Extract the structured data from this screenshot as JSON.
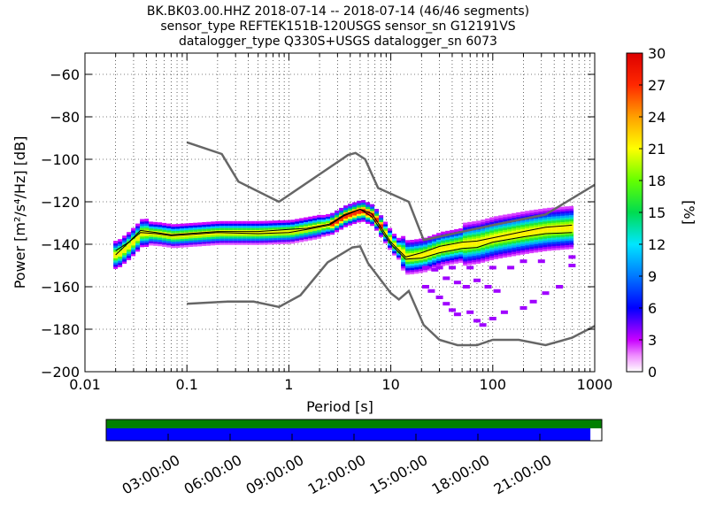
{
  "title": {
    "line1": "BK.BK03.00.HHZ   2018-07-14 -- 2018-07-14  (46/46 segments)",
    "line2": "sensor_type REFTEK151B-120USGS sensor_sn G12191VS",
    "line3": "datalogger_type Q330S+USGS datalogger_sn 6073"
  },
  "chart_data": {
    "type": "heatmap",
    "x_scale": "log",
    "xlabel": "Period [s]",
    "ylabel": "Power [m²/s⁴/Hz] [dB]",
    "xlim": [
      0.01,
      1000
    ],
    "ylim": [
      -200,
      -50
    ],
    "x_ticks": [
      {
        "value": 0.01,
        "label": "0.01"
      },
      {
        "value": 0.1,
        "label": "0.1"
      },
      {
        "value": 1,
        "label": "1"
      },
      {
        "value": 10,
        "label": "10"
      },
      {
        "value": 100,
        "label": "100"
      },
      {
        "value": 1000,
        "label": "1000"
      }
    ],
    "y_ticks": [
      -60,
      -80,
      -100,
      -120,
      -140,
      -160,
      -180,
      -200
    ],
    "grid": true,
    "colorbar": {
      "label": "[%]",
      "min": 0,
      "max": 30,
      "ticks": [
        0,
        3,
        6,
        9,
        12,
        15,
        18,
        21,
        24,
        27,
        30
      ]
    },
    "noise_model_high": [
      [
        0.1,
        -92
      ],
      [
        0.22,
        -97.5
      ],
      [
        0.32,
        -110.5
      ],
      [
        0.8,
        -120
      ],
      [
        3.8,
        -98
      ],
      [
        4.5,
        -97
      ],
      [
        5.6,
        -100
      ],
      [
        7.5,
        -113.5
      ],
      [
        15,
        -120
      ],
      [
        21,
        -138
      ],
      [
        100,
        -131
      ],
      [
        330,
        -126
      ],
      [
        1000,
        -112
      ]
    ],
    "noise_model_low": [
      [
        0.1,
        -168
      ],
      [
        0.25,
        -167
      ],
      [
        0.45,
        -167
      ],
      [
        0.8,
        -169.5
      ],
      [
        1.3,
        -164
      ],
      [
        2.4,
        -148.5
      ],
      [
        4.2,
        -141.5
      ],
      [
        5,
        -141
      ],
      [
        6,
        -149
      ],
      [
        10,
        -163
      ],
      [
        12,
        -166
      ],
      [
        15,
        -162
      ],
      [
        21,
        -178
      ],
      [
        30,
        -185
      ],
      [
        45,
        -187.5
      ],
      [
        70,
        -187.5
      ],
      [
        100,
        -185
      ],
      [
        180,
        -185
      ],
      [
        330,
        -187.5
      ],
      [
        600,
        -184
      ],
      [
        1000,
        -178.5
      ]
    ],
    "median": [
      [
        0.02,
        -145
      ],
      [
        0.027,
        -139
      ],
      [
        0.035,
        -134.5
      ],
      [
        0.05,
        -135
      ],
      [
        0.07,
        -136
      ],
      [
        0.1,
        -135.5
      ],
      [
        0.2,
        -134.5
      ],
      [
        0.5,
        -135
      ],
      [
        1,
        -134.5
      ],
      [
        1.5,
        -133
      ],
      [
        2.5,
        -131
      ],
      [
        3.5,
        -126.5
      ],
      [
        5,
        -123.5
      ],
      [
        6.5,
        -127
      ],
      [
        10,
        -140
      ],
      [
        14,
        -147
      ],
      [
        20,
        -146.5
      ],
      [
        30,
        -144
      ],
      [
        50,
        -142
      ],
      [
        70,
        -141.5
      ],
      [
        100,
        -139
      ],
      [
        200,
        -136.5
      ],
      [
        330,
        -135
      ],
      [
        600,
        -134.5
      ]
    ],
    "mode": [
      [
        0.02,
        -143
      ],
      [
        0.027,
        -139
      ],
      [
        0.035,
        -133.5
      ],
      [
        0.05,
        -134.5
      ],
      [
        0.07,
        -135.5
      ],
      [
        0.1,
        -135
      ],
      [
        0.2,
        -134
      ],
      [
        0.5,
        -134
      ],
      [
        1,
        -133
      ],
      [
        1.5,
        -132.5
      ],
      [
        2.5,
        -130.5
      ],
      [
        3.5,
        -126
      ],
      [
        5,
        -123.5
      ],
      [
        6.5,
        -125.5
      ],
      [
        10,
        -139
      ],
      [
        14,
        -146
      ],
      [
        20,
        -144
      ],
      [
        30,
        -141
      ],
      [
        50,
        -139
      ],
      [
        70,
        -138.5
      ],
      [
        100,
        -137
      ],
      [
        200,
        -134
      ],
      [
        330,
        -132
      ],
      [
        600,
        -131
      ]
    ],
    "band_center": [
      [
        0.02,
        -145
      ],
      [
        0.027,
        -140
      ],
      [
        0.035,
        -134.5
      ],
      [
        0.05,
        -135
      ],
      [
        0.07,
        -136
      ],
      [
        0.1,
        -135.5
      ],
      [
        0.2,
        -134.5
      ],
      [
        0.5,
        -134.5
      ],
      [
        1,
        -134
      ],
      [
        1.5,
        -132.5
      ],
      [
        2.5,
        -130.5
      ],
      [
        3.5,
        -126.5
      ],
      [
        5,
        -124
      ],
      [
        6.5,
        -126.5
      ],
      [
        10,
        -139.5
      ],
      [
        14,
        -146
      ],
      [
        20,
        -145
      ],
      [
        30,
        -142
      ],
      [
        50,
        -140
      ],
      [
        70,
        -139
      ],
      [
        100,
        -137
      ],
      [
        200,
        -134.5
      ],
      [
        330,
        -133
      ],
      [
        600,
        -132
      ]
    ],
    "outlier_cells": [
      [
        22,
        -160
      ],
      [
        25,
        -162
      ],
      [
        30,
        -165
      ],
      [
        35,
        -168
      ],
      [
        40,
        -171
      ],
      [
        45,
        -173
      ],
      [
        60,
        -172
      ],
      [
        70,
        -176
      ],
      [
        80,
        -178
      ],
      [
        100,
        -175
      ],
      [
        130,
        -172
      ],
      [
        200,
        -170
      ],
      [
        250,
        -167
      ],
      [
        330,
        -163
      ],
      [
        450,
        -160
      ],
      [
        22,
        -151
      ],
      [
        30,
        -151
      ],
      [
        40,
        -151
      ],
      [
        60,
        -151
      ],
      [
        100,
        -151
      ],
      [
        150,
        -151
      ],
      [
        200,
        -148
      ],
      [
        300,
        -148
      ],
      [
        600,
        -146
      ],
      [
        600,
        -150
      ],
      [
        27,
        -152
      ],
      [
        35,
        -156
      ],
      [
        45,
        -158
      ],
      [
        55,
        -160
      ],
      [
        70,
        -157
      ],
      [
        90,
        -160
      ],
      [
        110,
        -162
      ]
    ]
  },
  "timeline": {
    "tick_labels": [
      "03:00:00",
      "06:00:00",
      "09:00:00",
      "12:00:00",
      "15:00:00",
      "18:00:00",
      "21:00:00"
    ],
    "data_coverage_fraction": 1.0,
    "gap_coverage_fraction": 0.977,
    "data_color": "#008000",
    "gap_color": "#0000ff"
  }
}
